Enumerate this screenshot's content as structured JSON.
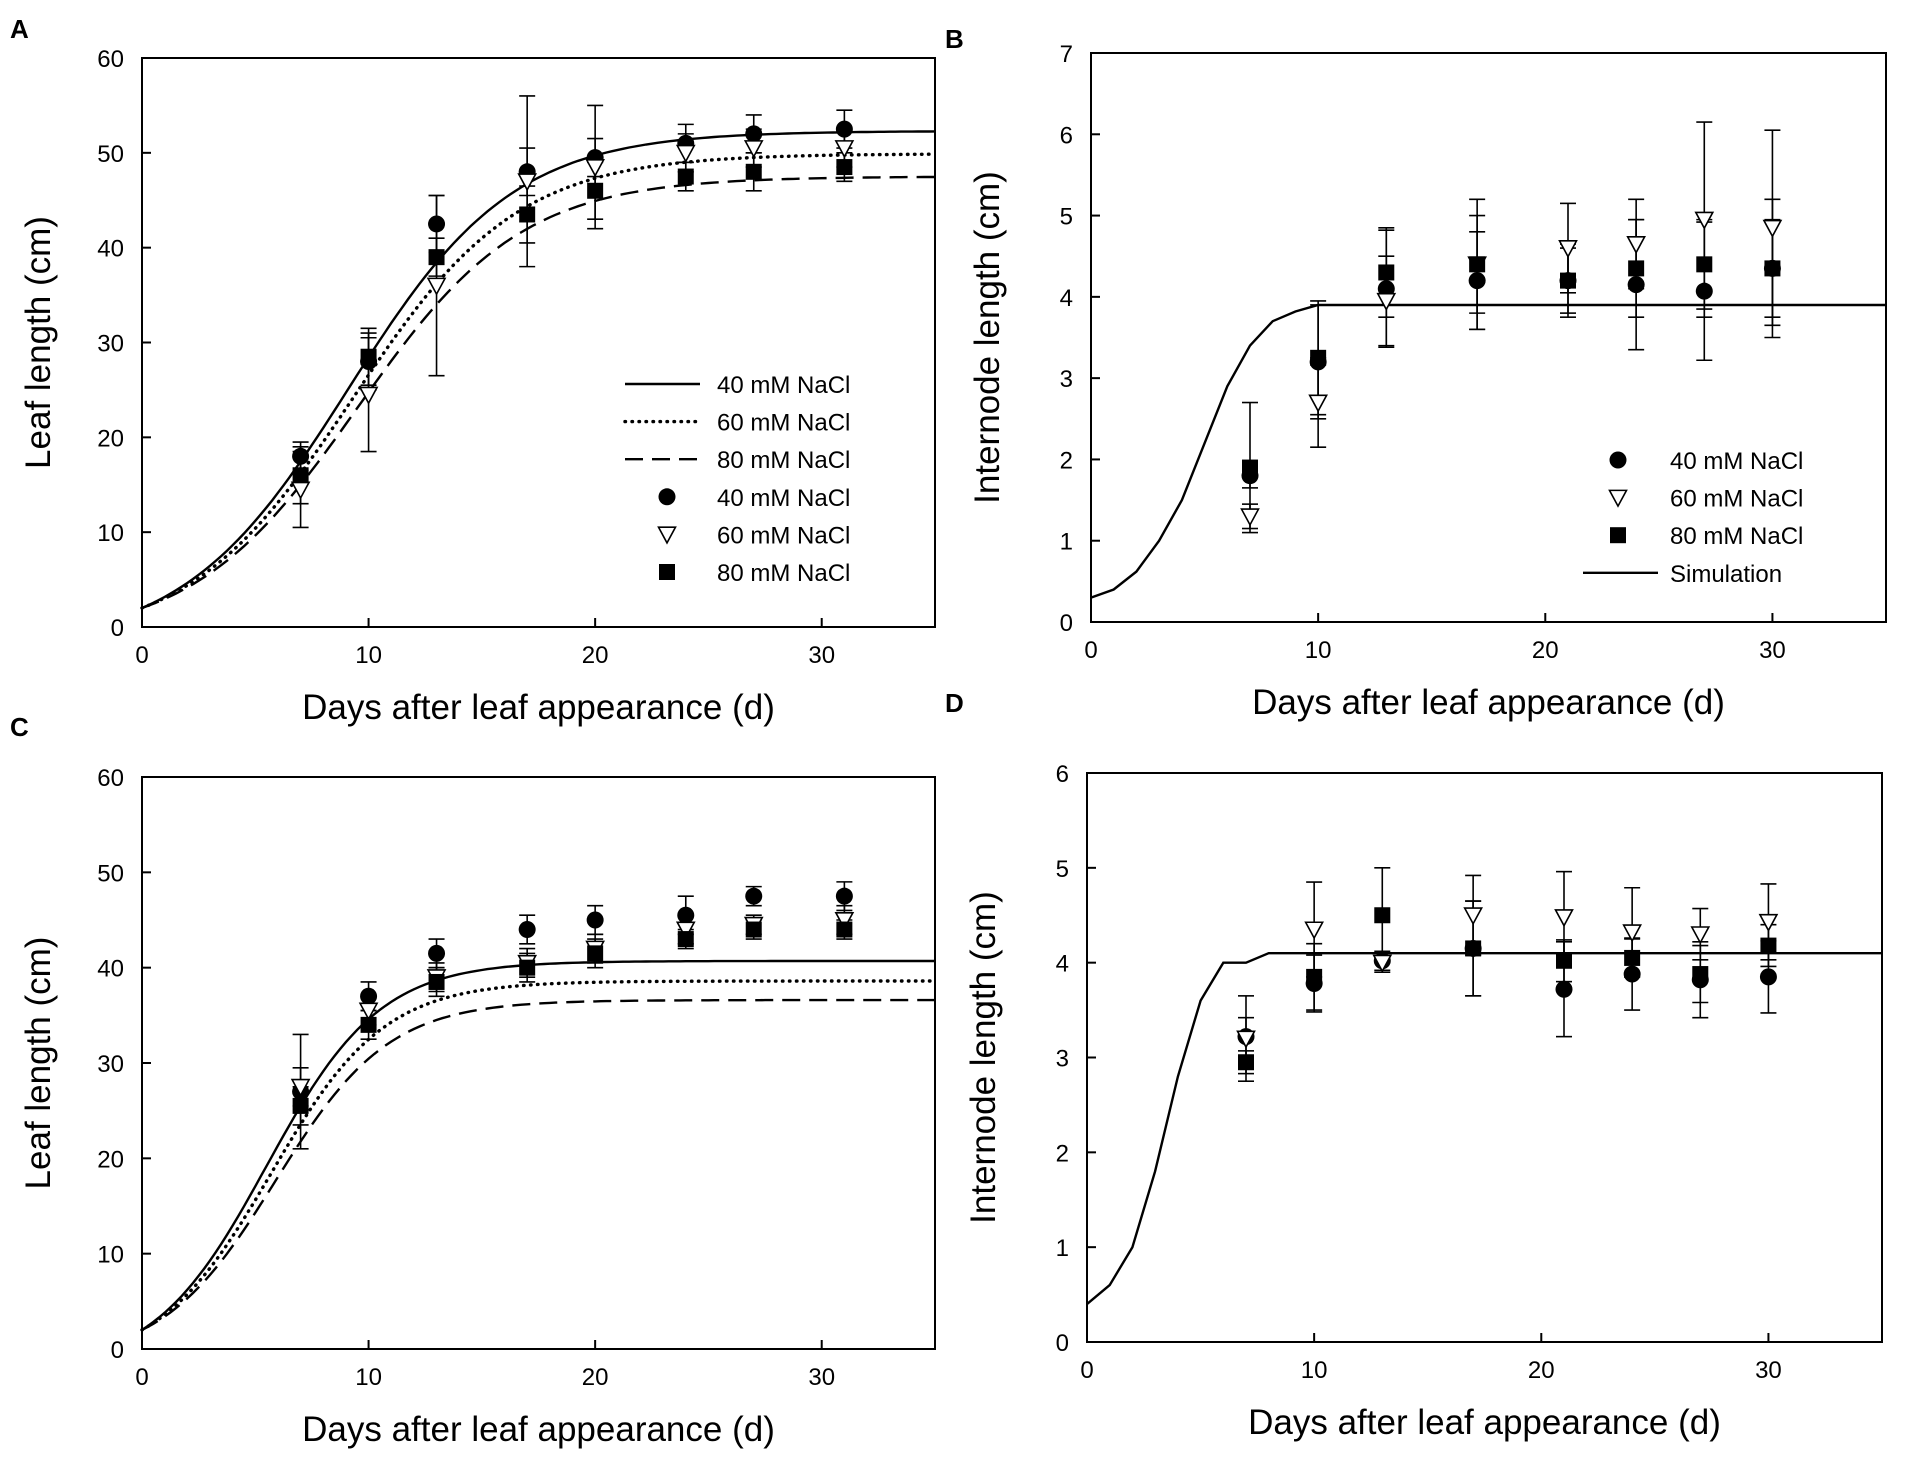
{
  "figure": {
    "panels": [
      "A",
      "B",
      "C",
      "D"
    ]
  },
  "chart_data": [
    {
      "panel": "A",
      "type": "line",
      "xlabel": "Days after leaf appearance (d)",
      "ylabel": "Leaf length (cm)",
      "xlim": [
        0,
        35
      ],
      "ylim": [
        0,
        60
      ],
      "xticks": [
        0,
        10,
        20,
        30
      ],
      "yticks": [
        0,
        10,
        20,
        30,
        40,
        50,
        60
      ],
      "legend_position": "lower-right",
      "lines": [
        {
          "name": "40 mM NaCl",
          "style": "solid",
          "K": 52.3,
          "r": 0.275,
          "t0": 9.1
        },
        {
          "name": "60 mM NaCl",
          "style": "dotted",
          "K": 49.9,
          "r": 0.275,
          "t0": 9.3
        },
        {
          "name": "80 mM NaCl",
          "style": "dashed",
          "K": 47.5,
          "r": 0.275,
          "t0": 9.5
        }
      ],
      "series": [
        {
          "name": "40 mM NaCl",
          "marker": "circle",
          "x": [
            7,
            10,
            13,
            17,
            20,
            24,
            27,
            31
          ],
          "y": [
            18,
            28,
            42.5,
            48,
            49.5,
            51,
            52,
            52.5
          ],
          "err": [
            1.5,
            3,
            3,
            2.5,
            2,
            2,
            2,
            2
          ]
        },
        {
          "name": "60 mM NaCl",
          "marker": "triangle-down",
          "x": [
            7,
            10,
            13,
            17,
            20,
            24,
            27,
            31
          ],
          "y": [
            14.5,
            24.5,
            36,
            47,
            48.5,
            50,
            50.5,
            50.5
          ],
          "err": [
            4,
            6,
            9.5,
            9,
            6.5,
            2,
            2,
            2
          ]
        },
        {
          "name": "80 mM NaCl",
          "marker": "square",
          "x": [
            7,
            10,
            13,
            17,
            20,
            24,
            27,
            31
          ],
          "y": [
            16,
            28.5,
            39,
            43.5,
            46,
            47.5,
            48,
            48.5
          ],
          "err": [
            3,
            3,
            2,
            3,
            3,
            1.5,
            2,
            1.5
          ]
        }
      ]
    },
    {
      "panel": "B",
      "type": "line",
      "xlabel": "Days after leaf appearance (d)",
      "ylabel": "Internode length (cm)",
      "xlim": [
        0,
        35
      ],
      "ylim": [
        0,
        7
      ],
      "xticks": [
        0,
        10,
        20,
        30
      ],
      "yticks": [
        0,
        1,
        2,
        3,
        4,
        5,
        6,
        7
      ],
      "legend_position": "lower-right",
      "lines": [
        {
          "name": "Simulation",
          "style": "solid",
          "x": [
            0,
            1,
            2,
            3,
            4,
            5,
            6,
            7,
            8,
            9,
            10,
            35
          ],
          "y": [
            0.3,
            0.4,
            0.62,
            1.0,
            1.5,
            2.2,
            2.9,
            3.4,
            3.7,
            3.82,
            3.9,
            3.9
          ]
        }
      ],
      "series": [
        {
          "name": "40 mM NaCl",
          "marker": "circle",
          "x": [
            7,
            10,
            13,
            17,
            21,
            24,
            27,
            30
          ],
          "y": [
            1.8,
            3.2,
            4.1,
            4.2,
            4.2,
            4.15,
            4.07,
            4.35
          ],
          "err": [
            0.15,
            0.7,
            0.72,
            0.6,
            0.45,
            0.8,
            0.85,
            0.85
          ]
        },
        {
          "name": "60 mM NaCl",
          "marker": "triangle-down",
          "x": [
            7,
            10,
            13,
            17,
            21,
            24,
            27,
            30
          ],
          "y": [
            1.3,
            2.7,
            3.95,
            4.4,
            4.6,
            4.65,
            4.95,
            4.85
          ],
          "err": [
            0.15,
            0.55,
            0.55,
            0.8,
            0.55,
            0.55,
            1.2,
            1.2
          ]
        },
        {
          "name": "80 mM NaCl",
          "marker": "square",
          "x": [
            7,
            10,
            13,
            17,
            21,
            24,
            27,
            30
          ],
          "y": [
            1.9,
            3.25,
            4.3,
            4.4,
            4.2,
            4.35,
            4.4,
            4.35
          ],
          "err": [
            0.8,
            0.7,
            0.55,
            0.6,
            0.4,
            0.6,
            0.55,
            0.6
          ]
        }
      ],
      "legend_entries": [
        {
          "name": "40 mM NaCl",
          "marker": "circle"
        },
        {
          "name": "60 mM NaCl",
          "marker": "triangle-down"
        },
        {
          "name": "80 mM NaCl",
          "marker": "square"
        },
        {
          "name": "Simulation",
          "marker": "line"
        }
      ]
    },
    {
      "panel": "C",
      "type": "line",
      "xlabel": "Days after leaf appearance (d)",
      "ylabel": "Leaf length (cm)",
      "xlim": [
        0,
        35
      ],
      "ylim": [
        0,
        60
      ],
      "xticks": [
        0,
        10,
        20,
        30
      ],
      "yticks": [
        0,
        10,
        20,
        30,
        40,
        50,
        60
      ],
      "legend_position": "none",
      "lines": [
        {
          "name": "40 mM NaCl",
          "style": "solid",
          "K": 40.7,
          "r": 0.4,
          "t0": 5.5
        },
        {
          "name": "60 mM NaCl",
          "style": "dotted",
          "K": 38.6,
          "r": 0.4,
          "t0": 5.7
        },
        {
          "name": "80 mM NaCl",
          "style": "dashed",
          "K": 36.6,
          "r": 0.4,
          "t0": 5.9
        }
      ],
      "series": [
        {
          "name": "40 mM NaCl",
          "marker": "circle",
          "x": [
            7,
            10,
            13,
            17,
            20,
            24,
            27,
            31
          ],
          "y": [
            27,
            37,
            41.5,
            44,
            45,
            45.5,
            47.5,
            47.5
          ],
          "err": [
            6,
            1.5,
            1.5,
            1.5,
            1.5,
            2,
            1,
            1.5
          ]
        },
        {
          "name": "60 mM NaCl",
          "marker": "triangle-down",
          "x": [
            7,
            10,
            13,
            17,
            20,
            24,
            27,
            31
          ],
          "y": [
            27.5,
            35.5,
            39,
            40.5,
            42,
            44,
            44.5,
            45
          ],
          "err": [
            2,
            1.5,
            1.5,
            1.5,
            1.5,
            1.5,
            1,
            1.5
          ]
        },
        {
          "name": "80 mM NaCl",
          "marker": "square",
          "x": [
            7,
            10,
            13,
            17,
            20,
            24,
            27,
            31
          ],
          "y": [
            25.5,
            34,
            38.5,
            40,
            41.5,
            43,
            44,
            44
          ],
          "err": [
            2,
            1.5,
            1.5,
            1.5,
            1.5,
            1,
            1,
            1
          ]
        }
      ]
    },
    {
      "panel": "D",
      "type": "line",
      "xlabel": "Days after leaf appearance (d)",
      "ylabel": "Internode length (cm)",
      "xlim": [
        0,
        35
      ],
      "ylim": [
        0,
        6
      ],
      "xticks": [
        0,
        10,
        20,
        30
      ],
      "yticks": [
        0,
        1,
        2,
        3,
        4,
        5,
        6
      ],
      "legend_position": "none",
      "lines": [
        {
          "name": "Simulation",
          "style": "solid",
          "x": [
            0,
            1,
            2,
            3,
            4,
            5,
            6,
            7,
            8,
            35
          ],
          "y": [
            0.4,
            0.6,
            1.0,
            1.8,
            2.8,
            3.6,
            4.0,
            4.0,
            4.1,
            4.1
          ]
        }
      ],
      "series": [
        {
          "name": "40 mM NaCl",
          "marker": "circle",
          "x": [
            7,
            10,
            13,
            17,
            21,
            24,
            27,
            30
          ],
          "y": [
            3.22,
            3.78,
            4.02,
            4.15,
            3.72,
            3.88,
            3.82,
            3.85
          ],
          "err": [
            0.2,
            0.3,
            0.1,
            0.5,
            0.5,
            0.38,
            0.4,
            0.38
          ]
        },
        {
          "name": "60 mM NaCl",
          "marker": "triangle-down",
          "x": [
            7,
            10,
            13,
            17,
            21,
            24,
            27,
            30
          ],
          "y": [
            3.2,
            4.35,
            4.0,
            4.5,
            4.48,
            4.32,
            4.3,
            4.43
          ],
          "err": [
            0.45,
            0.5,
            0.1,
            0.42,
            0.48,
            0.47,
            0.27,
            0.4
          ]
        },
        {
          "name": "80 mM NaCl",
          "marker": "square",
          "x": [
            7,
            10,
            13,
            17,
            21,
            24,
            27,
            30
          ],
          "y": [
            2.95,
            3.85,
            4.5,
            4.15,
            4.02,
            4.05,
            3.88,
            4.18
          ],
          "err": [
            0.12,
            0.35,
            0.5,
            0.5,
            0.22,
            0.2,
            0.3,
            0.22
          ]
        }
      ]
    }
  ]
}
